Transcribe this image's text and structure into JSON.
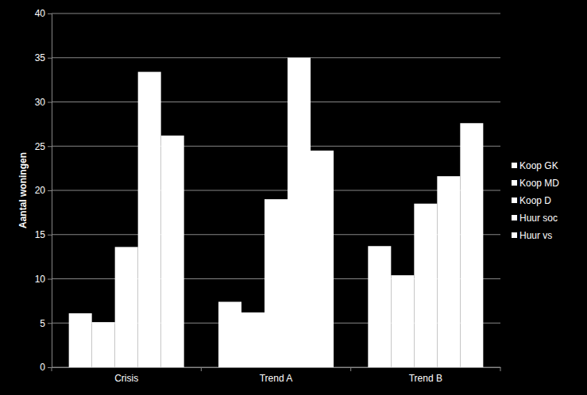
{
  "chart_data": {
    "type": "bar",
    "y_label": "Aantal woningen",
    "categories": [
      "Crisis",
      "Trend A",
      "Trend B"
    ],
    "series": [
      {
        "name": "Koop GK",
        "color": "#ffffff",
        "values": [
          6.1,
          7.4,
          13.7
        ]
      },
      {
        "name": "Koop MD",
        "color": "#ffffff",
        "values": [
          5.1,
          6.2,
          10.4
        ]
      },
      {
        "name": "Koop D",
        "color": "#ffffff",
        "values": [
          13.6,
          19.0,
          18.5
        ]
      },
      {
        "name": "Huur soc",
        "color": "#ffffff",
        "values": [
          33.4,
          35.0,
          21.6
        ]
      },
      {
        "name": "Huur vs",
        "color": "#ffffff",
        "values": [
          26.2,
          24.5,
          27.6
        ]
      }
    ],
    "ylim": [
      0,
      40
    ],
    "yticks": [
      0,
      5,
      10,
      15,
      20,
      25,
      30,
      35,
      40
    ],
    "grid": true,
    "legend": "right"
  }
}
